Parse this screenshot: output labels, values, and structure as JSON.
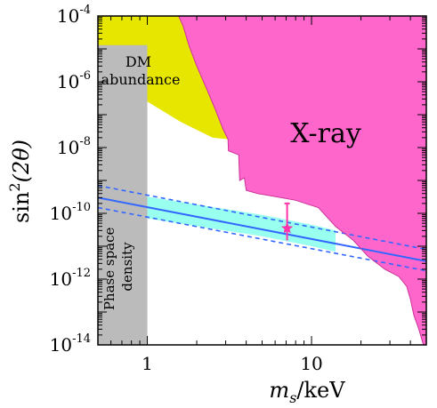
{
  "chart_data": {
    "type": "area",
    "title": "",
    "xlabel": {
      "italic": "m",
      "sub": "s",
      "rest": "/keV"
    },
    "ylabel": {
      "prefix": "sin",
      "sup": "2",
      "arg": "(2θ)"
    },
    "xscale": "log",
    "yscale": "log",
    "xlim": [
      0.5,
      50
    ],
    "ylim": [
      1e-14,
      0.0001
    ],
    "grid": false,
    "x_ticks": [
      {
        "value": 1,
        "label": "1"
      },
      {
        "value": 10,
        "label": "10"
      }
    ],
    "y_ticks": [
      {
        "value": 0.0001,
        "base": "10",
        "exp": "-4"
      },
      {
        "value": 1e-06,
        "base": "10",
        "exp": "-6"
      },
      {
        "value": 1e-08,
        "base": "10",
        "exp": "-8"
      },
      {
        "value": 1e-10,
        "base": "10",
        "exp": "-10"
      },
      {
        "value": 1e-12,
        "base": "10",
        "exp": "-12"
      },
      {
        "value": 1e-14,
        "base": "10",
        "exp": "-14"
      }
    ],
    "regions": {
      "xray": {
        "label": "X-ray",
        "color": "#ff66cc",
        "boundary": [
          [
            1.55,
            0.0001
          ],
          [
            1.65,
            5e-05
          ],
          [
            1.8,
            1.2e-05
          ],
          [
            2.0,
            3e-06
          ],
          [
            2.3,
            6e-07
          ],
          [
            2.6,
            1.4e-07
          ],
          [
            2.9,
            3.5e-08
          ],
          [
            3.1,
            1.8e-08
          ],
          [
            3.12,
            8e-09
          ],
          [
            3.6,
            6e-09
          ],
          [
            3.65,
            1e-09
          ],
          [
            3.9,
            1.2e-09
          ],
          [
            4.0,
            5e-10
          ],
          [
            4.7,
            4e-10
          ],
          [
            5.5,
            3.5e-10
          ],
          [
            8.0,
            2.5e-10
          ],
          [
            11,
            1.5e-10
          ],
          [
            14,
            4e-11
          ],
          [
            18,
            1.5e-11
          ],
          [
            22,
            5e-12
          ],
          [
            28,
            2e-12
          ],
          [
            34,
            1.2e-12
          ],
          [
            38,
            6e-13
          ],
          [
            40,
            2.5e-13
          ],
          [
            42,
            8e-14
          ],
          [
            45,
            3e-14
          ],
          [
            48,
            1e-14
          ],
          [
            50,
            1e-14
          ]
        ]
      },
      "dm_abundance": {
        "label_lines": [
          "DM",
          "abundance"
        ],
        "color": "#e6e600",
        "points": [
          [
            0.5,
            1.3e-05
          ],
          [
            0.5,
            0.0001
          ],
          [
            1.55,
            0.0001
          ],
          [
            1.65,
            5e-05
          ],
          [
            1.8,
            1.2e-05
          ],
          [
            2.0,
            3e-06
          ],
          [
            2.3,
            6e-07
          ],
          [
            2.6,
            1.4e-07
          ],
          [
            2.9,
            3.5e-08
          ],
          [
            3.1,
            1.8e-08
          ],
          [
            2.5,
            2e-08
          ],
          [
            1.6,
            6e-08
          ],
          [
            1.0,
            2.5e-07
          ],
          [
            0.7,
            1.2e-06
          ],
          [
            0.5,
            1.3e-05
          ]
        ]
      },
      "phase_space": {
        "label_lines": [
          "Phase space",
          "density"
        ],
        "color": "#bbbbbb",
        "x_range": [
          0.5,
          1.0
        ]
      },
      "allowed_band": {
        "color": "#99ffee",
        "upper": [
          [
            1,
            3.2e-10
          ],
          [
            5,
            9e-11
          ],
          [
            10,
            4.5e-11
          ],
          [
            20,
            2e-11
          ],
          [
            50,
            8e-12
          ]
        ],
        "lower": [
          [
            1,
            7e-11
          ],
          [
            5,
            2e-11
          ],
          [
            10,
            1e-11
          ],
          [
            20,
            4.5e-12
          ],
          [
            50,
            1.8e-12
          ]
        ],
        "x_max": 14
      }
    },
    "series": [
      {
        "style": "solid",
        "color": "#3366ff",
        "points": [
          [
            0.5,
            3e-10
          ],
          [
            50,
            3.5e-12
          ]
        ]
      },
      {
        "style": "dashed",
        "color": "#3366ff",
        "points": [
          [
            0.5,
            7e-10
          ],
          [
            50,
            8e-12
          ]
        ]
      },
      {
        "style": "dashed",
        "color": "#3366ff",
        "points": [
          [
            0.5,
            1.5e-10
          ],
          [
            50,
            1.8e-12
          ]
        ]
      }
    ],
    "marker": {
      "shape": "star",
      "color": "#ff33aa",
      "x": 7.1,
      "y": 3.5e-11,
      "y_err": [
        1.5e-11,
        2e-10
      ]
    }
  }
}
